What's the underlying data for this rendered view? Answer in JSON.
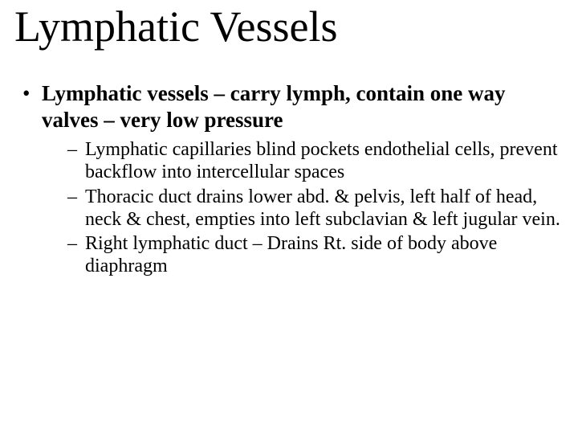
{
  "background_color": "#ffffff",
  "text_color": "#000000",
  "font_family": "Times New Roman",
  "title": {
    "text": "Lymphatic Vessels",
    "fontsize": 54,
    "weight": "normal"
  },
  "bullets": {
    "level1_fontsize": 27,
    "level1_weight": "bold",
    "level2_fontsize": 24,
    "level2_weight": "normal",
    "level1": [
      {
        "text": "Lymphatic vessels – carry lymph, contain one way valves – very low pressure",
        "children": [
          "Lymphatic capillaries  blind pockets  endothelial cells, prevent backflow into intercellular spaces",
          "Thoracic duct  drains lower abd. & pelvis, left half of head, neck & chest, empties into left subclavian & left jugular vein.",
          "Right lymphatic duct – Drains Rt. side of body above diaphragm"
        ]
      }
    ]
  }
}
